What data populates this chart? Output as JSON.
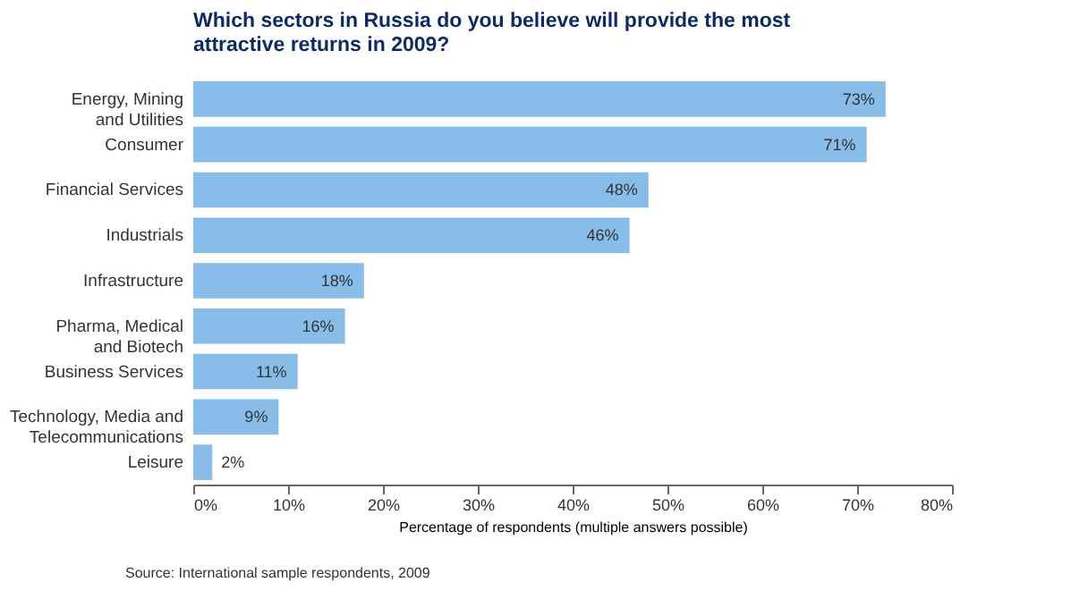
{
  "chart_data": {
    "type": "bar",
    "orientation": "horizontal",
    "title": "Which sectors in Russia do you believe will provide the most\nattractive returns in 2009?",
    "xlabel": "Percentage of respondents (multiple answers possible)",
    "categories": [
      "Energy, Mining\nand Utilities",
      "Consumer",
      "Financial Services",
      "Industrials",
      "Infrastructure",
      "Pharma, Medical\nand Biotech",
      "Business Services",
      "Technology, Media and\nTelecommunications",
      "Leisure"
    ],
    "values": [
      73,
      71,
      48,
      46,
      18,
      16,
      11,
      9,
      2
    ],
    "value_labels": [
      "73%",
      "71%",
      "48%",
      "46%",
      "18%",
      "16%",
      "11%",
      "9%",
      "2%"
    ],
    "color": "#87bde8",
    "xlim": [
      0,
      80
    ],
    "xticks": [
      {
        "value": 0,
        "label": "0%"
      },
      {
        "value": 10,
        "label": "10%"
      },
      {
        "value": 20,
        "label": "20%"
      },
      {
        "value": 30,
        "label": "30%"
      },
      {
        "value": 40,
        "label": "40%"
      },
      {
        "value": 50,
        "label": "50%"
      },
      {
        "value": 60,
        "label": "60%"
      },
      {
        "value": 70,
        "label": "70%"
      },
      {
        "value": 80,
        "label": "80%"
      }
    ],
    "grid": false,
    "annotations": [
      "Source: International sample respondents, 2009"
    ]
  }
}
